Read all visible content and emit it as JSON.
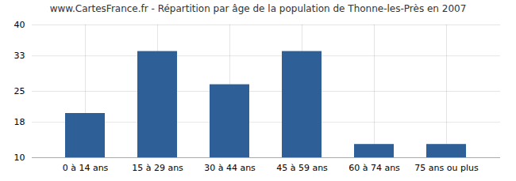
{
  "chart_data": {
    "type": "bar",
    "title": "www.CartesFrance.fr - Répartition par âge de la population de Thonne-les-Près en 2007",
    "categories": [
      "0 à 14 ans",
      "15 à 29 ans",
      "30 à 44 ans",
      "45 à 59 ans",
      "60 à 74 ans",
      "75 ans ou plus"
    ],
    "values": [
      20.0,
      34.0,
      26.5,
      34.0,
      13.0,
      13.0
    ],
    "color": "#2e5f96",
    "ylim": [
      10,
      40
    ],
    "yticks": [
      10,
      18,
      25,
      33,
      40
    ],
    "grid": true
  }
}
